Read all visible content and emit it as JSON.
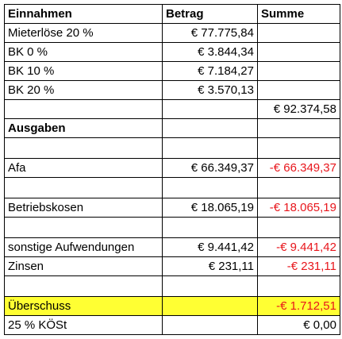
{
  "header": {
    "label": "Einnahmen",
    "betrag": "Betrag",
    "summe": "Summe"
  },
  "rows": {
    "mieterloese": {
      "label": "Mieterlöse 20 %",
      "betrag": "€ 77.775,84"
    },
    "bk0": {
      "label": "BK 0 %",
      "betrag": "€ 3.844,34"
    },
    "bk10": {
      "label": "BK 10 %",
      "betrag": "€ 7.184,27"
    },
    "bk20": {
      "label": "BK 20 %",
      "betrag": "€ 3.570,13"
    },
    "einnahmen_summe": {
      "summe": "€ 92.374,58"
    },
    "ausgaben_header": {
      "label": "Ausgaben"
    },
    "afa": {
      "label": "Afa",
      "betrag": "€ 66.349,37",
      "summe": "-€ 66.349,37"
    },
    "betriebskosen": {
      "label": "Betriebskosen",
      "betrag": "€ 18.065,19",
      "summe": "-€ 18.065,19"
    },
    "sonstige": {
      "label": "sonstige Aufwendungen",
      "betrag": "€ 9.441,42",
      "summe": "-€ 9.441,42"
    },
    "zinsen": {
      "label": "Zinsen",
      "betrag": "€ 231,11",
      "summe": "-€ 231,11"
    },
    "ueberschuss": {
      "label": "Überschuss",
      "summe": "-€ 1.712,51"
    },
    "koest": {
      "label": "25 % KÖSt",
      "summe": "€ 0,00"
    }
  },
  "colors": {
    "negative": "#e8161c",
    "highlight": "#ffff33"
  }
}
